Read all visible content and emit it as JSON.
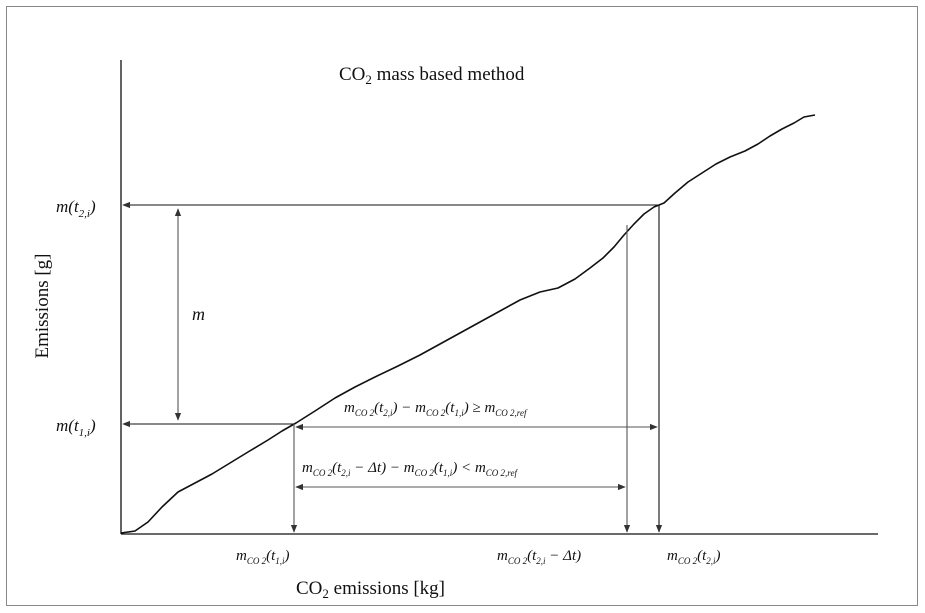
{
  "title": {
    "main": "CO",
    "sub": "2",
    "rest": " mass based method"
  },
  "axes": {
    "ylabel": "Emissions [g]",
    "xlabel": {
      "main": "CO",
      "sub": "2",
      "rest": " emissions [kg]"
    }
  },
  "labels": {
    "y_t2": {
      "pre": "m(t",
      "sub": "2,i",
      "post": ")"
    },
    "y_t1": {
      "pre": "m(t",
      "sub": "1,i",
      "post": ")"
    },
    "m": "m",
    "x_t1": {
      "pre": "m",
      "sub": "CO 2",
      "post": "(t",
      "sub2": "1,i",
      "post2": ")"
    },
    "x_t2_dt": {
      "pre": "m",
      "sub": "CO 2",
      "post": "(t",
      "sub2": "2,i",
      "post2": " − Δt)"
    },
    "x_t2": {
      "pre": "m",
      "sub": "CO 2",
      "post": "(t",
      "sub2": "2,i",
      "post2": ")"
    }
  },
  "equations": {
    "ge": {
      "a": "m",
      "a_sub": "CO 2",
      "b": "(t",
      "b_sub": "2,i",
      "c": ") − ",
      "d": "m",
      "d_sub": "CO 2",
      "e": "(t",
      "e_sub": "1,i",
      "f": ") ≥ ",
      "g": "m",
      "g_sub": "CO 2,ref"
    },
    "lt": {
      "a": "m",
      "a_sub": "CO 2",
      "b": "(t",
      "b_sub": "2,i",
      "c": " − Δt) − ",
      "d": "m",
      "d_sub": "CO 2",
      "e": "(t",
      "e_sub": "1,i",
      "f": ") < ",
      "g": "m",
      "g_sub": "CO 2,ref"
    }
  },
  "colors": {
    "line": "#111111",
    "arrow": "#555555",
    "frame": "#888888"
  }
}
